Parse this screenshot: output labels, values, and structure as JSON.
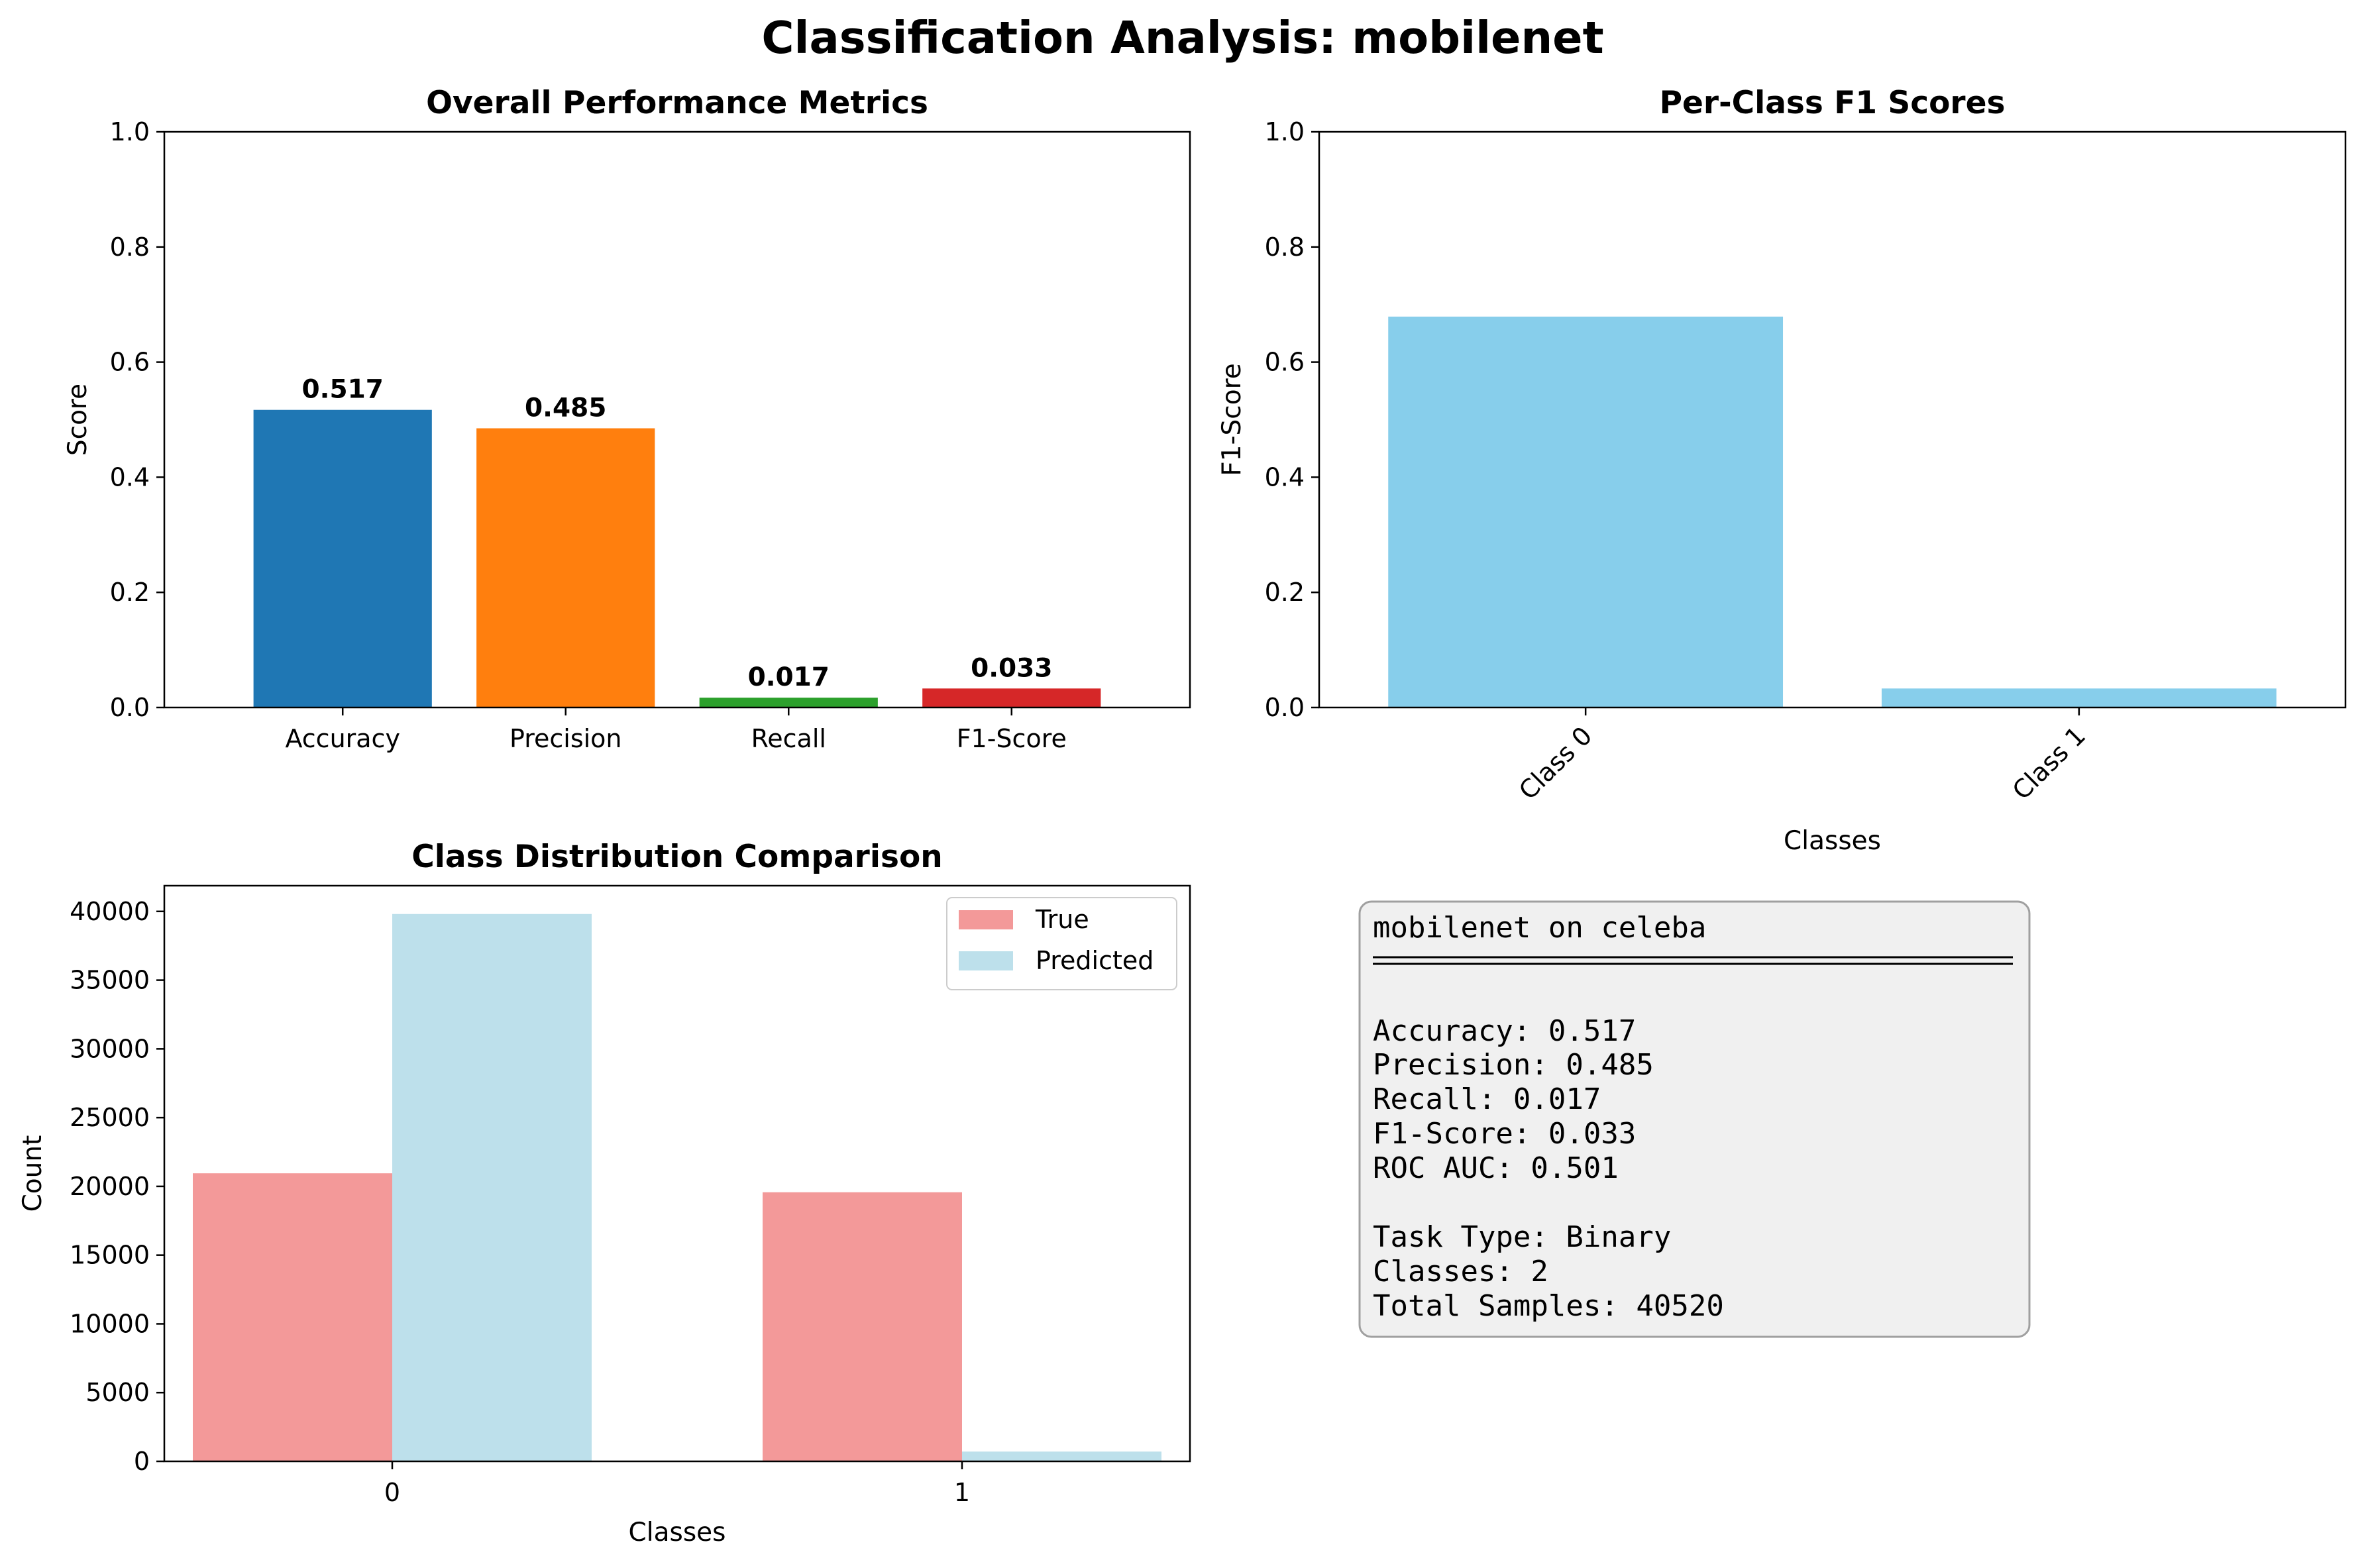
{
  "suptitle": "Classification Analysis: mobilenet",
  "colors": {
    "accuracy": "#1f77b4",
    "precision": "#ff7f0e",
    "recall": "#2ca02c",
    "f1": "#d62728",
    "skyblue": "#87ceeb",
    "lightcoral": "#f08080",
    "lightblue": "#add8e6",
    "textbox_bg": "#f0f0f0",
    "textbox_border": "#a0a0a0"
  },
  "chart_data": [
    {
      "type": "bar",
      "title": "Overall Performance Metrics",
      "xlabel": "",
      "ylabel": "Score",
      "categories": [
        "Accuracy",
        "Precision",
        "Recall",
        "F1-Score"
      ],
      "values": [
        0.517,
        0.485,
        0.017,
        0.033
      ],
      "value_labels": [
        "0.517",
        "0.485",
        "0.017",
        "0.033"
      ],
      "ylim": [
        0,
        1.0
      ],
      "yticks": [
        "0.0",
        "0.2",
        "0.4",
        "0.6",
        "0.8",
        "1.0"
      ],
      "grid": false
    },
    {
      "type": "bar",
      "title": "Per-Class F1 Scores",
      "xlabel": "Classes",
      "ylabel": "F1-Score",
      "categories": [
        "Class 0",
        "Class 1"
      ],
      "values": [
        0.679,
        0.033
      ],
      "ylim": [
        0,
        1.0
      ],
      "yticks": [
        "0.0",
        "0.2",
        "0.4",
        "0.6",
        "0.8",
        "1.0"
      ],
      "grid": false
    },
    {
      "type": "bar",
      "title": "Class Distribution Comparison",
      "xlabel": "Classes",
      "ylabel": "Count",
      "categories": [
        "0",
        "1"
      ],
      "series": [
        {
          "name": "True",
          "values": [
            20950,
            19570
          ]
        },
        {
          "name": "Predicted",
          "values": [
            39810,
            710
          ]
        }
      ],
      "ylim": [
        0,
        41870
      ],
      "yticks": [
        "0",
        "5000",
        "10000",
        "15000",
        "20000",
        "25000",
        "30000",
        "35000",
        "40000"
      ],
      "legend": "top-right",
      "grid": false
    }
  ],
  "summary_box": {
    "header": "mobilenet on celeba",
    "lines": [
      "Accuracy: 0.517",
      "Precision: 0.485",
      "Recall: 0.017",
      "F1-Score: 0.033",
      "ROC AUC: 0.501",
      "",
      "Task Type: Binary",
      "Classes: 2",
      "Total Samples: 40520"
    ]
  }
}
